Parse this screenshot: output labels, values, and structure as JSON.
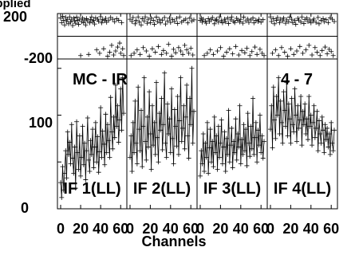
{
  "chart_data": {
    "type": "line",
    "title_fragment": "applied",
    "source_label": "MC - IR",
    "baseline_label": "4 - 7",
    "xlabel": "Channels",
    "x_tick_labels": [
      "0",
      "20",
      "40",
      "60"
    ],
    "x_range": [
      0,
      63
    ],
    "phase_panel": {
      "ylim": [
        -200,
        200
      ],
      "y_tick_labels": [
        "200",
        "-200"
      ]
    },
    "amplitude_panel": {
      "ylim": [
        0,
        160
      ],
      "y_tick_labels": [
        "0",
        "100"
      ]
    },
    "channels": 64,
    "panels": [
      {
        "name": "IF 1(LL)",
        "amp": [
          28,
          12,
          45,
          20,
          38,
          62,
          33,
          82,
          58,
          71,
          48,
          90,
          54,
          38,
          66,
          22,
          93,
          60,
          42,
          78,
          35,
          55,
          88,
          47,
          70,
          31,
          62,
          97,
          52,
          40,
          73,
          58,
          85,
          44,
          66,
          92,
          50,
          77,
          39,
          61,
          108,
          55,
          83,
          69,
          47,
          101,
          60,
          90,
          73,
          55,
          119,
          82,
          64,
          98,
          76,
          132,
          88,
          110,
          71,
          95,
          128,
          84,
          140,
          102
        ],
        "phase": [
          160,
          120,
          175,
          140,
          100,
          165,
          130,
          150,
          110,
          170,
          125,
          145,
          95,
          160,
          135,
          115,
          168,
          140,
          105,
          150,
          -170,
          130,
          160,
          120,
          145,
          100,
          155,
          135,
          -160,
          118,
          148,
          170,
          128,
          140,
          108,
          162,
          -120,
          150,
          132,
          -150,
          172,
          118,
          146,
          -110,
          138,
          158,
          124,
          -175,
          142,
          -140,
          166,
          -80,
          150,
          -165,
          128,
          -130,
          154,
          -95,
          140,
          -60,
          -150,
          120,
          -110,
          -170
        ]
      },
      {
        "name": "IF 2(LL)",
        "amp": [
          55,
          78,
          40,
          92,
          60,
          115,
          70,
          48,
          130,
          85,
          62,
          105,
          45,
          88,
          140,
          72,
          52,
          98,
          66,
          125,
          80,
          42,
          110,
          68,
          92,
          58,
          135,
          76,
          50,
          102,
          84,
          118,
          63,
          90,
          145,
          70,
          55,
          112,
          80,
          96,
          60,
          128,
          75,
          48,
          106,
          88,
          67,
          120,
          58,
          94,
          140,
          72,
          86,
          110,
          64,
          98,
          132,
          78,
          54,
          118,
          90,
          150,
          70,
          104
        ],
        "phase": [
          150,
          -170,
          130,
          165,
          -150,
          110,
          140,
          -120,
          170,
          125,
          -160,
          100,
          155,
          -100,
          135,
          170,
          -130,
          115,
          150,
          -175,
          120,
          160,
          -110,
          140,
          105,
          -140,
          168,
          130,
          -90,
          150,
          118,
          -160,
          142,
          -125,
          165,
          108,
          -150,
          135,
          -70,
          160,
          122,
          -175,
          146,
          -115,
          130,
          -145,
          158,
          112,
          -100,
          170,
          -130,
          125,
          -160,
          140,
          -80,
          152,
          -120,
          118,
          -150,
          160,
          -105,
          135,
          -165,
          145
        ]
      },
      {
        "name": "IF 3(LL)",
        "amp": [
          35,
          62,
          48,
          80,
          40,
          70,
          55,
          92,
          38,
          65,
          85,
          50,
          72,
          45,
          98,
          60,
          78,
          42,
          88,
          55,
          70,
          95,
          48,
          66,
          82,
          40,
          75,
          58,
          105,
          50,
          68,
          86,
          44,
          72,
          60,
          96,
          52,
          80,
          66,
          110,
          48,
          74,
          58,
          90,
          62,
          85,
          46,
          102,
          70,
          56,
          88,
          64,
          118,
          58,
          76,
          92,
          50,
          84,
          68,
          100,
          60,
          78,
          54,
          72
        ],
        "phase": [
          140,
          160,
          125,
          150,
          -170,
          135,
          115,
          -150,
          155,
          130,
          -120,
          145,
          165,
          -160,
          110,
          140,
          150,
          -130,
          125,
          170,
          -100,
          138,
          118,
          -175,
          150,
          128,
          -140,
          160,
          112,
          -110,
          145,
          170,
          -155,
          132,
          120,
          -90,
          158,
          140,
          -165,
          126,
          150,
          -125,
          115,
          168,
          -145,
          136,
          -105,
          152,
          122,
          -170,
          144,
          -135,
          160,
          118,
          -95,
          140,
          -160,
          130,
          150,
          -115,
          124,
          -150,
          146,
          -170
        ]
      },
      {
        "name": "IF 4(LL)",
        "amp": [
          85,
          110,
          65,
          130,
          95,
          75,
          120,
          100,
          140,
          80,
          115,
          92,
          70,
          125,
          105,
          88,
          135,
          78,
          112,
          96,
          70,
          118,
          90,
          82,
          128,
          100,
          72,
          110,
          86,
          95,
          120,
          68,
          104,
          90,
          112,
          80,
          96,
          74,
          120,
          88,
          100,
          68,
          92,
          110,
          76,
          86,
          104,
          62,
          94,
          80,
          70,
          98,
          84,
          60,
          90,
          74,
          86,
          66,
          80,
          58,
          92,
          70,
          62,
          84
        ],
        "phase": [
          170,
          130,
          -150,
          155,
          110,
          -120,
          140,
          165,
          -170,
          120,
          150,
          -100,
          135,
          160,
          -140,
          115,
          145,
          -175,
          128,
          168,
          -110,
          150,
          120,
          -160,
          138,
          105,
          -130,
          158,
          142,
          -90,
          125,
          170,
          -150,
          112,
          148,
          -120,
          160,
          130,
          -80,
          145,
          118,
          -165,
          135,
          152,
          -100,
          122,
          -140,
          166,
          110,
          -170,
          140,
          -125,
          155,
          128,
          -95,
          146,
          -155,
          120,
          -115,
          162,
          -135,
          150,
          -170,
          130
        ]
      }
    ]
  }
}
